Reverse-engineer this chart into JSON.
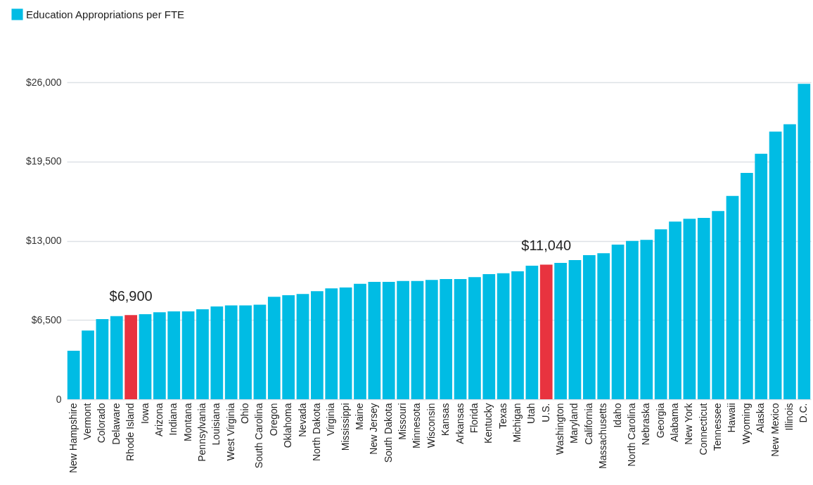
{
  "chart_data": {
    "type": "bar",
    "categories": [
      "New Hampshire",
      "Vermont",
      "Colorado",
      "Delaware",
      "Rhode Island",
      "Iowa",
      "Arizona",
      "Indiana",
      "Montana",
      "Pennsylvania",
      "Louisiana",
      "West Virginia",
      "Ohio",
      "South Carolina",
      "Oregon",
      "Oklahoma",
      "Nevada",
      "North Dakota",
      "Virginia",
      "Mississippi",
      "Maine",
      "New Jersey",
      "South Dakota",
      "Missouri",
      "Minnesota",
      "Wisconsin",
      "Kansas",
      "Arkansas",
      "Florida",
      "Kentucky",
      "Texas",
      "Michigan",
      "Utah",
      "U.S.",
      "Washington",
      "Maryland",
      "California",
      "Massachusetts",
      "Idaho",
      "North Carolina",
      "Nebraska",
      "Georgia",
      "Alabama",
      "New York",
      "Connecticut",
      "Tennessee",
      "Hawaii",
      "Wyoming",
      "Alaska",
      "New Mexico",
      "Illinois",
      "D.C."
    ],
    "series": [
      {
        "name": "Education Appropriations per FTE",
        "color": "#00bce4",
        "values": [
          3980,
          5630,
          6570,
          6820,
          6900,
          6980,
          7130,
          7210,
          7210,
          7380,
          7610,
          7690,
          7690,
          7760,
          8400,
          8530,
          8630,
          8860,
          9090,
          9170,
          9470,
          9630,
          9630,
          9700,
          9700,
          9780,
          9860,
          9860,
          10010,
          10260,
          10340,
          10490,
          10950,
          11040,
          11180,
          11420,
          11820,
          11970,
          12680,
          12990,
          13070,
          13930,
          14570,
          14800,
          14870,
          15430,
          16680,
          18560,
          20140,
          21950,
          22560,
          25870
        ],
        "colors": [
          "#00bce4",
          "#00bce4",
          "#00bce4",
          "#00bce4",
          "#e8333f",
          "#00bce4",
          "#00bce4",
          "#00bce4",
          "#00bce4",
          "#00bce4",
          "#00bce4",
          "#00bce4",
          "#00bce4",
          "#00bce4",
          "#00bce4",
          "#00bce4",
          "#00bce4",
          "#00bce4",
          "#00bce4",
          "#00bce4",
          "#00bce4",
          "#00bce4",
          "#00bce4",
          "#00bce4",
          "#00bce4",
          "#00bce4",
          "#00bce4",
          "#00bce4",
          "#00bce4",
          "#00bce4",
          "#00bce4",
          "#00bce4",
          "#00bce4",
          "#e8333f",
          "#00bce4",
          "#00bce4",
          "#00bce4",
          "#00bce4",
          "#00bce4",
          "#00bce4",
          "#00bce4",
          "#00bce4",
          "#00bce4",
          "#00bce4",
          "#00bce4",
          "#00bce4",
          "#00bce4",
          "#00bce4",
          "#00bce4",
          "#00bce4",
          "#00bce4",
          "#00bce4"
        ],
        "value_labels": [
          null,
          null,
          null,
          null,
          "$6,900",
          null,
          null,
          null,
          null,
          null,
          null,
          null,
          null,
          null,
          null,
          null,
          null,
          null,
          null,
          null,
          null,
          null,
          null,
          null,
          null,
          null,
          null,
          null,
          null,
          null,
          null,
          null,
          null,
          "$11,040",
          null,
          null,
          null,
          null,
          null,
          null,
          null,
          null,
          null,
          null,
          null,
          null,
          null,
          null,
          null,
          null,
          null,
          null
        ]
      }
    ],
    "ylim": [
      0,
      26000
    ],
    "yticks": [
      0,
      {
        "value": 6500,
        "label": "$6,500"
      },
      {
        "value": 13000,
        "label": "$13,000"
      },
      {
        "value": 19500,
        "label": "$19,500"
      },
      {
        "value": 26000,
        "label": "$26,000"
      }
    ],
    "grid": "y",
    "legend": "top left"
  }
}
